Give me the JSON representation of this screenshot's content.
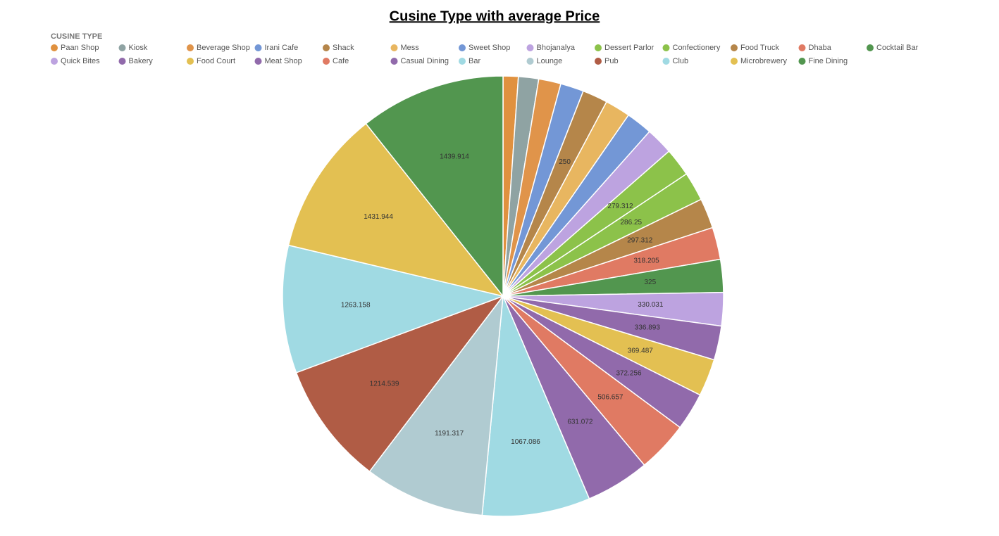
{
  "chart_data": {
    "type": "pie",
    "title": "Cusine Type with average Price",
    "legend_title": "CUSINE TYPE",
    "categories": [
      "Paan Shop",
      "Kiosk",
      "Beverage Shop",
      "Irani Cafe",
      "Shack",
      "Mess",
      "Sweet Shop",
      "Bhojanalya",
      "Dessert Parlor",
      "Confectionery",
      "Food Truck",
      "Dhaba",
      "Cocktail Bar",
      "Quick Bites",
      "Bakery",
      "Food Court",
      "Meat Shop",
      "Cafe",
      "Casual Dining",
      "Bar",
      "Lounge",
      "Pub",
      "Club",
      "Microbrewery",
      "Fine Dining"
    ],
    "values": [
      150,
      200,
      220,
      230,
      250,
      250,
      260,
      270,
      279.312,
      286.25,
      297.312,
      318.205,
      325,
      330.031,
      336.893,
      369.487,
      372.256,
      506.657,
      631.072,
      1067.086,
      1191.317,
      1214.539,
      1263.158,
      1431.944,
      1439.914
    ],
    "value_labels": [
      null,
      null,
      null,
      null,
      "250",
      null,
      null,
      null,
      "279.312",
      "286.25",
      "297.312",
      "318.205",
      "325",
      "330.031",
      "336.893",
      "369.487",
      "372.256",
      "506.657",
      "631.072",
      "1067.086",
      "1191.317",
      "1214.539",
      "1263.158",
      "1431.944",
      "1439.914"
    ],
    "colors": [
      "#e0913f",
      "#8fa3a3",
      "#e0944a",
      "#7397d6",
      "#b5864a",
      "#e8b660",
      "#7397d6",
      "#bda3e0",
      "#8cc24a",
      "#8cc24a",
      "#b5864a",
      "#e07a63",
      "#52964f",
      "#bda3e0",
      "#916aab",
      "#e3c052",
      "#916aab",
      "#e07a63",
      "#916aab",
      "#a0dae3",
      "#b0cbd1",
      "#b05c45",
      "#a0dae3",
      "#e3c052",
      "#52964f"
    ]
  }
}
